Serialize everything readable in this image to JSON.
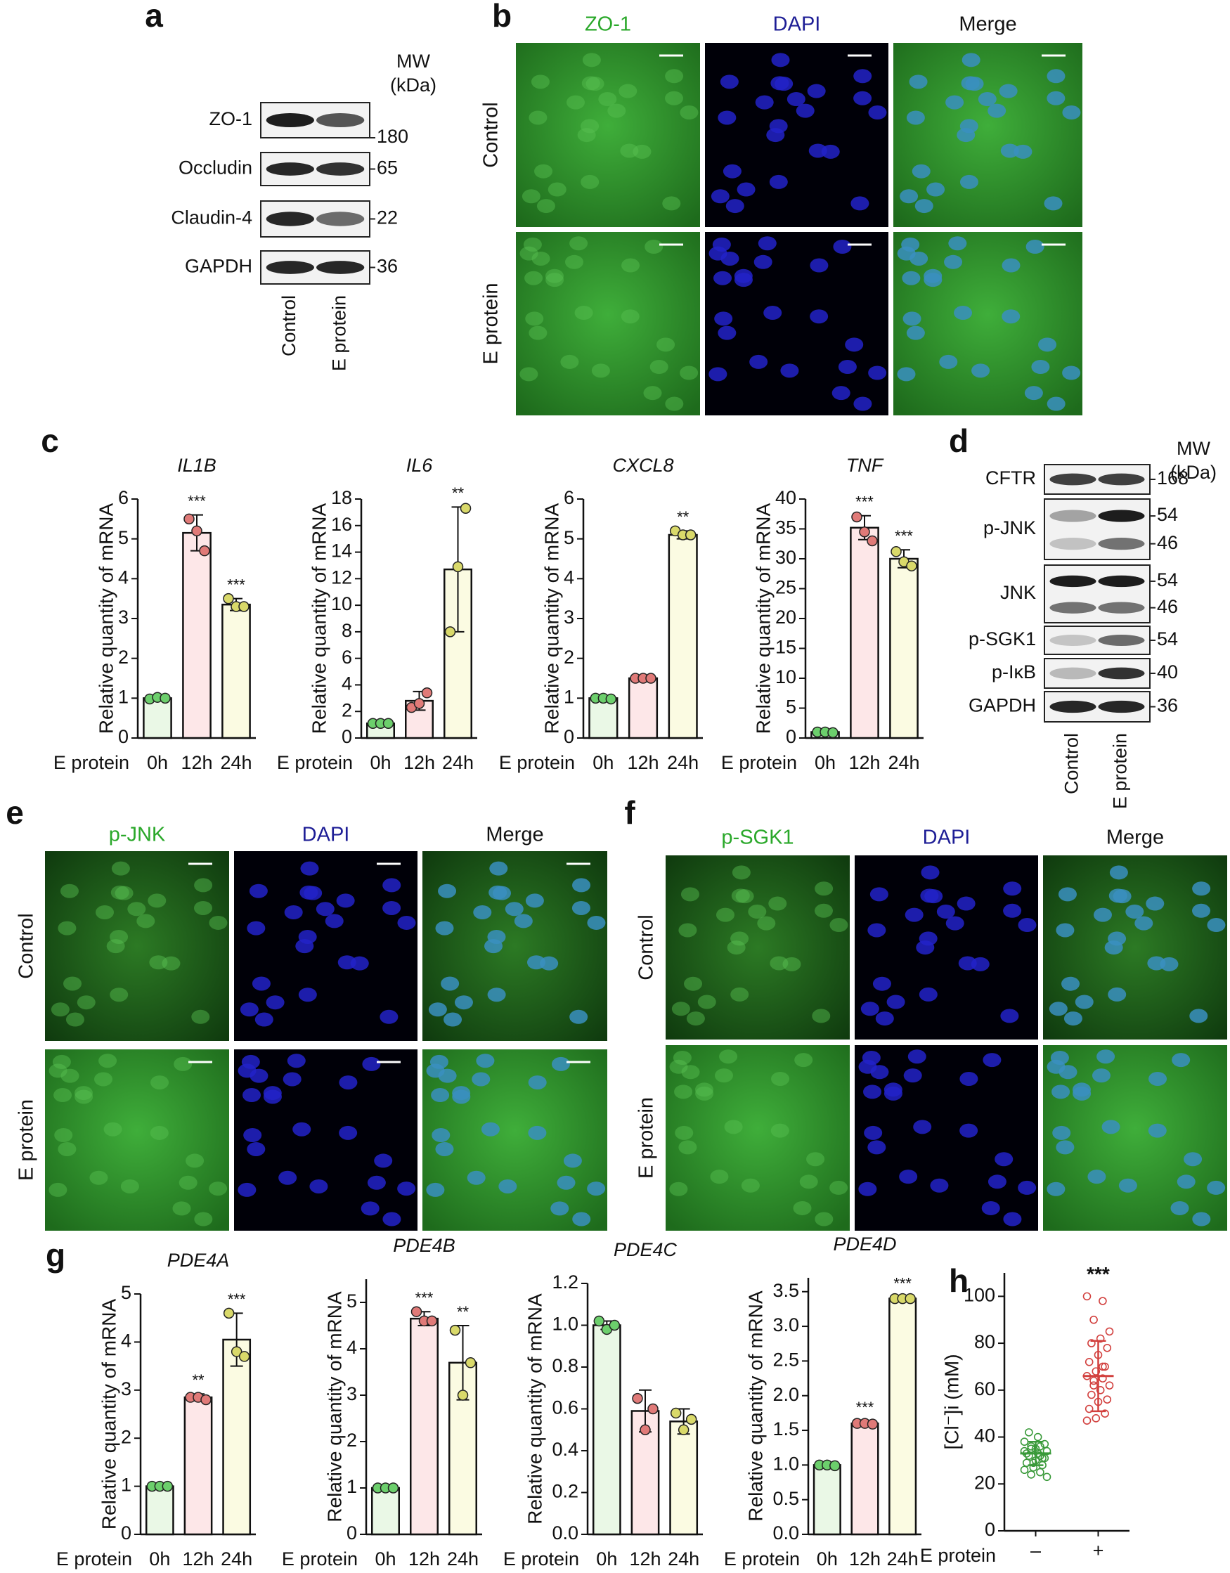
{
  "panels": {
    "a": {
      "label": "a",
      "mw": [
        "MW",
        "(kDa)"
      ],
      "rows": [
        {
          "name": "ZO-1",
          "mw": [
            180
          ]
        },
        {
          "name": "Occludin",
          "mw": [
            65
          ]
        },
        {
          "name": "Claudin-4",
          "mw": [
            22
          ]
        },
        {
          "name": "GAPDH",
          "mw": [
            36
          ]
        }
      ],
      "lanes": [
        "Control",
        "E protein"
      ]
    },
    "b": {
      "label": "b",
      "channels": [
        "ZO-1",
        "DAPI",
        "Merge"
      ],
      "rows": [
        "Control",
        "E protein"
      ]
    },
    "c": {
      "label": "c"
    },
    "d": {
      "label": "d",
      "mw": [
        "MW",
        "(kDa)"
      ],
      "rows": [
        {
          "name": "CFTR",
          "mw": [
            168
          ]
        },
        {
          "name": "p-JNK",
          "mw": [
            54,
            46
          ]
        },
        {
          "name": "JNK",
          "mw": [
            54,
            46
          ]
        },
        {
          "name": "p-SGK1",
          "mw": [
            54
          ]
        },
        {
          "name": "p-IκB",
          "mw": [
            40
          ]
        },
        {
          "name": "GAPDH",
          "mw": [
            36
          ]
        }
      ],
      "lanes": [
        "Control",
        "E protein"
      ]
    },
    "e": {
      "label": "e",
      "channels": [
        "p-JNK",
        "DAPI",
        "Merge"
      ],
      "rows": [
        "Control",
        "E protein"
      ]
    },
    "f": {
      "label": "f",
      "channels": [
        "p-SGK1",
        "DAPI",
        "Merge"
      ],
      "rows": [
        "Control",
        "E protein"
      ]
    },
    "g": {
      "label": "g"
    },
    "h": {
      "label": "h"
    }
  },
  "chart_data": [
    {
      "type": "bar",
      "title": "IL1B",
      "ylabel": "Relative quantity of mRNA",
      "xlabel": "E protein",
      "categories": [
        "0h",
        "12h",
        "24h"
      ],
      "values": [
        1.0,
        5.15,
        3.35
      ],
      "errors": [
        0.05,
        0.45,
        0.15
      ],
      "points": [
        [
          0.98,
          1.02,
          1.0
        ],
        [
          5.5,
          5.2,
          4.7
        ],
        [
          3.5,
          3.3,
          3.3
        ]
      ],
      "annotations": [
        null,
        "***",
        "***"
      ],
      "bar_colors": [
        "#eaf8e6",
        "#fde7e8",
        "#fbfbe2"
      ],
      "point_colors": [
        "#6ccf6c",
        "#e07a78",
        "#d9d96a"
      ],
      "ylim": [
        0,
        6
      ],
      "yticks": [
        0,
        1,
        2,
        3,
        4,
        5,
        6
      ]
    },
    {
      "type": "bar",
      "title": "IL6",
      "ylabel": "Relative quantity of mRNA",
      "xlabel": "E protein",
      "categories": [
        "0h",
        "12h",
        "24h"
      ],
      "values": [
        1.1,
        2.8,
        12.7
      ],
      "errors": [
        0.1,
        0.7,
        4.7
      ],
      "points": [
        [
          1.1,
          1.1,
          1.1
        ],
        [
          2.3,
          2.6,
          3.4
        ],
        [
          8.0,
          12.9,
          17.3
        ]
      ],
      "annotations": [
        null,
        null,
        "**"
      ],
      "bar_colors": [
        "#eaf8e6",
        "#fde7e8",
        "#fbfbe2"
      ],
      "point_colors": [
        "#6ccf6c",
        "#e07a78",
        "#d9d96a"
      ],
      "ylim": [
        0,
        18
      ],
      "yticks": [
        0,
        2,
        4,
        6,
        8,
        10,
        12,
        14,
        16,
        18
      ]
    },
    {
      "type": "bar",
      "title": "CXCL8",
      "ylabel": "Relative quantity of mRNA",
      "xlabel": "E protein",
      "categories": [
        "0h",
        "12h",
        "24h"
      ],
      "values": [
        1.0,
        1.5,
        5.1
      ],
      "errors": [
        0.05,
        0.03,
        0.1
      ],
      "points": [
        [
          1.0,
          1.0,
          0.98
        ],
        [
          1.5,
          1.5,
          1.5
        ],
        [
          5.2,
          5.1,
          5.1
        ]
      ],
      "annotations": [
        null,
        null,
        "**"
      ],
      "bar_colors": [
        "#eaf8e6",
        "#fde7e8",
        "#fbfbe2"
      ],
      "point_colors": [
        "#6ccf6c",
        "#e07a78",
        "#d9d96a"
      ],
      "ylim": [
        0,
        6
      ],
      "yticks": [
        0,
        1,
        2,
        3,
        4,
        5,
        6
      ]
    },
    {
      "type": "bar",
      "title": "TNF",
      "ylabel": "Relative quantity of mRNA",
      "xlabel": "E protein",
      "categories": [
        "0h",
        "12h",
        "24h"
      ],
      "values": [
        1.0,
        35.2,
        30.0
      ],
      "errors": [
        0.3,
        2.0,
        1.5
      ],
      "points": [
        [
          1.0,
          1.0,
          0.9
        ],
        [
          37.0,
          34.5,
          33.0
        ],
        [
          31.2,
          29.5,
          28.8
        ]
      ],
      "annotations": [
        null,
        "***",
        "***"
      ],
      "bar_colors": [
        "#eaf8e6",
        "#fde7e8",
        "#fbfbe2"
      ],
      "point_colors": [
        "#6ccf6c",
        "#e07a78",
        "#d9d96a"
      ],
      "ylim": [
        0,
        40
      ],
      "yticks": [
        0,
        5,
        10,
        15,
        20,
        25,
        30,
        35,
        40
      ]
    },
    {
      "type": "bar",
      "title": "PDE4A",
      "ylabel": "Relative quantity of mRNA",
      "xlabel": "E protein",
      "categories": [
        "0h",
        "12h",
        "24h"
      ],
      "values": [
        1.0,
        2.85,
        4.05
      ],
      "errors": [
        0.05,
        0.07,
        0.55
      ],
      "points": [
        [
          1.0,
          1.0,
          1.0
        ],
        [
          2.85,
          2.85,
          2.8
        ],
        [
          4.6,
          3.8,
          3.7
        ]
      ],
      "annotations": [
        null,
        "**",
        "***"
      ],
      "bar_colors": [
        "#eaf8e6",
        "#fde7e8",
        "#fbfbe2"
      ],
      "point_colors": [
        "#6ccf6c",
        "#e07a78",
        "#d9d96a"
      ],
      "ylim": [
        0,
        5
      ],
      "yticks": [
        0,
        1,
        2,
        3,
        4,
        5
      ]
    },
    {
      "type": "bar",
      "title": "PDE4B",
      "ylabel": "Relative quantity of mRNA",
      "xlabel": "E protein",
      "categories": [
        "0h",
        "12h",
        "24h"
      ],
      "values": [
        1.0,
        4.65,
        3.7
      ],
      "errors": [
        0.05,
        0.15,
        0.8
      ],
      "points": [
        [
          1.0,
          1.0,
          1.0
        ],
        [
          4.8,
          4.6,
          4.6
        ],
        [
          4.4,
          3.0,
          3.7
        ]
      ],
      "annotations": [
        null,
        "***",
        "**"
      ],
      "bar_colors": [
        "#eaf8e6",
        "#fde7e8",
        "#fbfbe2"
      ],
      "point_colors": [
        "#6ccf6c",
        "#e07a78",
        "#d9d96a"
      ],
      "ylim": [
        0,
        5.5
      ],
      "yticks": [
        0,
        1,
        2,
        3,
        4,
        5
      ]
    },
    {
      "type": "bar",
      "title": "PDE4C",
      "ylabel": "Relative quantity of mRNA",
      "xlabel": "E protein",
      "categories": [
        "0h",
        "12h",
        "24h"
      ],
      "values": [
        1.0,
        0.59,
        0.54
      ],
      "errors": [
        0.02,
        0.1,
        0.06
      ],
      "points": [
        [
          1.02,
          0.98,
          1.0
        ],
        [
          0.65,
          0.5,
          0.6
        ],
        [
          0.58,
          0.5,
          0.55
        ]
      ],
      "annotations": [
        null,
        null,
        null
      ],
      "bar_colors": [
        "#eaf8e6",
        "#fde7e8",
        "#fbfbe2"
      ],
      "point_colors": [
        "#6ccf6c",
        "#e07a78",
        "#d9d96a"
      ],
      "ylim": [
        0,
        1.2
      ],
      "yticks": [
        {
          "value": 0,
          "label": "0.0"
        },
        0.2,
        0.4,
        0.6,
        0.8,
        {
          "value": 1,
          "label": "1.0"
        },
        1.2
      ]
    },
    {
      "type": "bar",
      "title": "PDE4D",
      "ylabel": "Relative quantity of mRNA",
      "xlabel": "E protein",
      "categories": [
        "0h",
        "12h",
        "24h"
      ],
      "values": [
        1.0,
        1.6,
        3.4
      ],
      "errors": [
        0.02,
        0.03,
        0.02
      ],
      "points": [
        [
          1.0,
          1.0,
          0.99
        ],
        [
          1.6,
          1.6,
          1.59
        ],
        [
          3.4,
          3.4,
          3.4
        ]
      ],
      "annotations": [
        null,
        "***",
        "***"
      ],
      "bar_colors": [
        "#eaf8e6",
        "#fde7e8",
        "#fbfbe2"
      ],
      "point_colors": [
        "#6ccf6c",
        "#e07a78",
        "#d9d96a"
      ],
      "ylim": [
        0,
        3.7
      ],
      "yticks": [
        {
          "value": 0,
          "label": "0.0"
        },
        0.5,
        {
          "value": 1,
          "label": "1.0"
        },
        1.5,
        {
          "value": 2,
          "label": "2.0"
        },
        2.5,
        {
          "value": 3,
          "label": "3.0"
        },
        3.5
      ]
    },
    {
      "type": "dot",
      "ylabel": "[Cl⁻]i (mM)",
      "xlabel": "E protein",
      "categories": [
        "–",
        "+"
      ],
      "annotations": [
        null,
        "***"
      ],
      "ylim": [
        0,
        110
      ],
      "yticks": [
        0,
        20,
        40,
        60,
        80,
        100
      ],
      "groups": [
        {
          "color": "#3a9a3a",
          "mean": 33,
          "sd": 5,
          "values": [
            38,
            36,
            35,
            34,
            33,
            32,
            31,
            30,
            29,
            28,
            27,
            26,
            25,
            24,
            23,
            40,
            42,
            37,
            35,
            33,
            31,
            29,
            34,
            32,
            36
          ]
        },
        {
          "color": "#d2403e",
          "mean": 66,
          "sd": 15,
          "values": [
            100,
            98,
            90,
            85,
            82,
            80,
            78,
            75,
            72,
            70,
            68,
            66,
            65,
            64,
            62,
            60,
            58,
            56,
            55,
            52,
            50,
            48,
            47,
            70,
            62
          ]
        }
      ]
    }
  ]
}
